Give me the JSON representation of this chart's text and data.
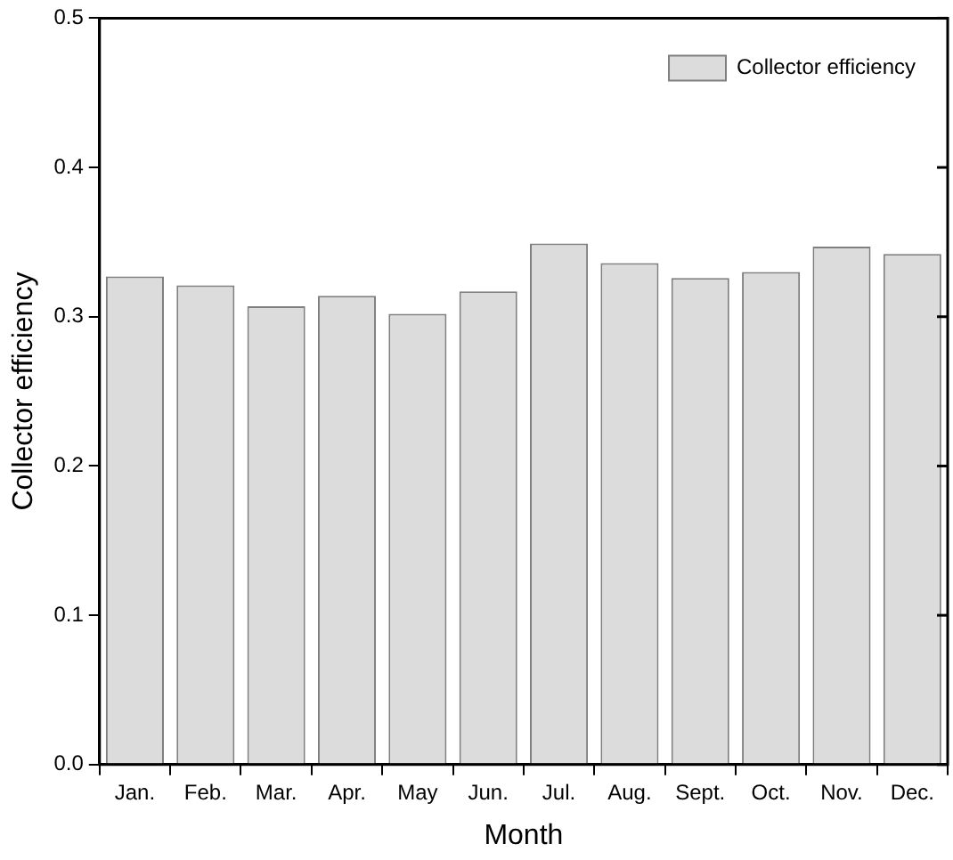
{
  "chart_data": {
    "type": "bar",
    "xlabel": "Month",
    "ylabel": "Collector efficiency",
    "categories": [
      "Jan.",
      "Feb.",
      "Mar.",
      "Apr.",
      "May",
      "Jun.",
      "Jul.",
      "Aug.",
      "Sept.",
      "Oct.",
      "Nov.",
      "Dec."
    ],
    "series": [
      {
        "name": "Collector efficiency",
        "color": "#dcdcdc",
        "values": [
          0.327,
          0.321,
          0.307,
          0.314,
          0.302,
          0.317,
          0.349,
          0.336,
          0.326,
          0.33,
          0.347,
          0.342
        ]
      }
    ],
    "ylim": [
      0,
      0.5
    ],
    "yticks": [
      {
        "value": 0,
        "label": "0.0"
      },
      {
        "value": 0.1,
        "label": "0.1"
      },
      {
        "value": 0.2,
        "label": "0.2"
      },
      {
        "value": 0.3,
        "label": "0.3"
      },
      {
        "value": 0.4,
        "label": "0.4"
      },
      {
        "value": 0.5,
        "label": "0.5"
      }
    ],
    "grid": false,
    "legend": "top right"
  }
}
